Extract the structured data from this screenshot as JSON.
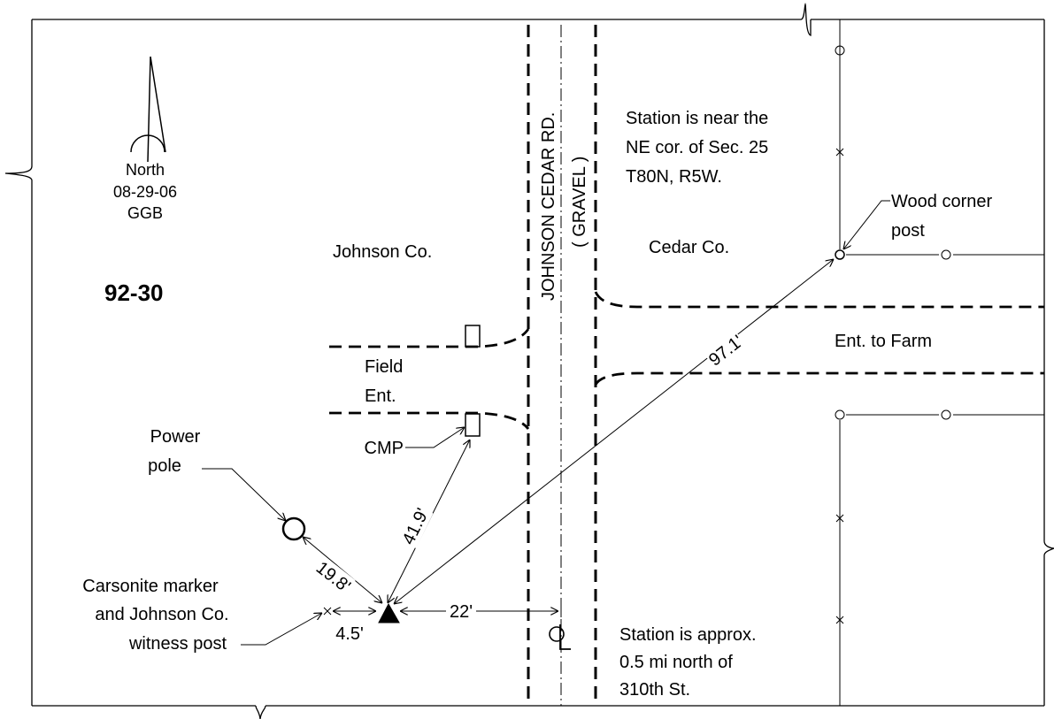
{
  "station_id": "92-30",
  "north": {
    "label": "North",
    "date": "08-29-06",
    "initials": "GGB"
  },
  "counties": {
    "left": "Johnson Co.",
    "right": "Cedar Co."
  },
  "road": {
    "name": "JOHNSON CEDAR RD.",
    "surface": "( GRAVEL )"
  },
  "notes": {
    "top": [
      "Station is near the",
      "NE cor. of Sec. 25",
      "T80N, R5W."
    ],
    "bottom": [
      "Station is approx.",
      "0.5 mi north of",
      "310th St."
    ]
  },
  "labels": {
    "wood_post": [
      "Wood corner",
      "post"
    ],
    "farm_entrance": "Ent. to Farm",
    "field_entrance": [
      "Field",
      "Ent."
    ],
    "cmp": "CMP",
    "power_pole": [
      "Power",
      "pole"
    ],
    "marker": [
      "Carsonite marker",
      "and Johnson Co.",
      "witness post"
    ],
    "centerline": "CL"
  },
  "distances": {
    "to_power_pole": "19.8'",
    "to_cmp": "41.9'",
    "to_wood_post": "97.1'",
    "to_centerline": "22'",
    "to_witness_post": "4.5'"
  }
}
